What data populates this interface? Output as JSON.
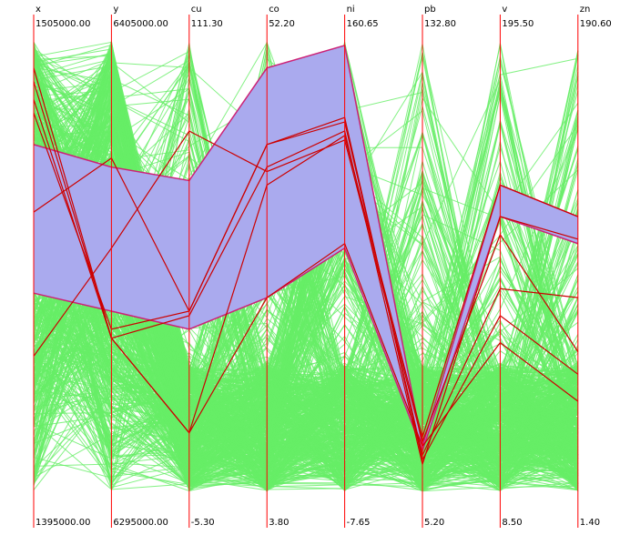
{
  "chart_data": {
    "type": "parallel-coordinates",
    "title": "",
    "axes": [
      {
        "name": "x",
        "max": "1505000.00",
        "min": "1395000.00"
      },
      {
        "name": "y",
        "max": "6405000.00",
        "min": "6295000.00"
      },
      {
        "name": "cu",
        "max": "111.30",
        "min": "-5.30"
      },
      {
        "name": "co",
        "max": "52.20",
        "min": "3.80"
      },
      {
        "name": "ni",
        "max": "160.65",
        "min": "-7.65"
      },
      {
        "name": "pb",
        "max": "132.80",
        "min": "5.20"
      },
      {
        "name": "v",
        "max": "195.50",
        "min": "8.50"
      },
      {
        "name": "zn",
        "max": "190.60",
        "min": "1.40"
      }
    ],
    "selection_band": {
      "upper": [
        0.77,
        0.72,
        0.69,
        0.94,
        0.99,
        0.1,
        0.68,
        0.61
      ],
      "lower": [
        0.44,
        0.4,
        0.36,
        0.43,
        0.54,
        0.09,
        0.61,
        0.55
      ]
    },
    "selected_lines": [
      [
        0.94,
        0.34,
        0.13,
        0.43,
        0.55,
        0.1,
        0.33,
        0.2
      ],
      [
        0.62,
        0.74,
        0.4,
        0.77,
        0.82,
        0.08,
        0.45,
        0.43
      ],
      [
        0.3,
        0.54,
        0.8,
        0.71,
        0.78,
        0.11,
        0.57,
        0.31
      ],
      [
        0.87,
        0.34,
        0.39,
        0.72,
        0.8,
        0.06,
        0.61,
        0.56
      ],
      [
        0.91,
        0.34,
        0.13,
        0.68,
        0.79,
        0.12,
        0.68,
        0.61
      ],
      [
        0.84,
        0.36,
        0.4,
        0.77,
        0.83,
        0.07,
        0.39,
        0.26
      ]
    ],
    "background_line_count": 700,
    "colors": {
      "axis": "#ff0000",
      "background_lines": "#66ee66",
      "selection_fill": "#aaaaee",
      "selection_edge": "#cc2277",
      "selected_lines": "#cc0000",
      "background": "#ffffff"
    }
  }
}
